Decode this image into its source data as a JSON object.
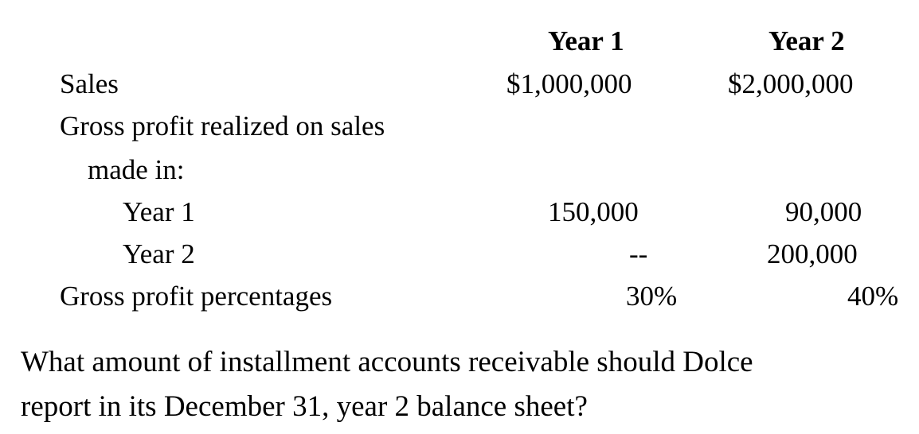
{
  "table": {
    "headers": [
      "Year 1",
      "Year 2"
    ],
    "rows": [
      {
        "label": "Sales",
        "year1": "$1,000,000",
        "year2": "$2,000,000"
      },
      {
        "label": "Gross profit realized on sales",
        "year1": "",
        "year2": ""
      },
      {
        "label": "made in:",
        "year1": "",
        "year2": ""
      },
      {
        "label": "Year 1",
        "year1": "150,000",
        "year2": "90,000"
      },
      {
        "label": "Year 2",
        "year1": "--",
        "year2": "200,000"
      },
      {
        "label": "Gross profit percentages",
        "year1": "30%",
        "year2": "40%"
      }
    ]
  },
  "question": {
    "line1": "What amount of installment accounts receivable should Dolce",
    "line2": "report in its December 31, year 2 balance sheet?"
  }
}
